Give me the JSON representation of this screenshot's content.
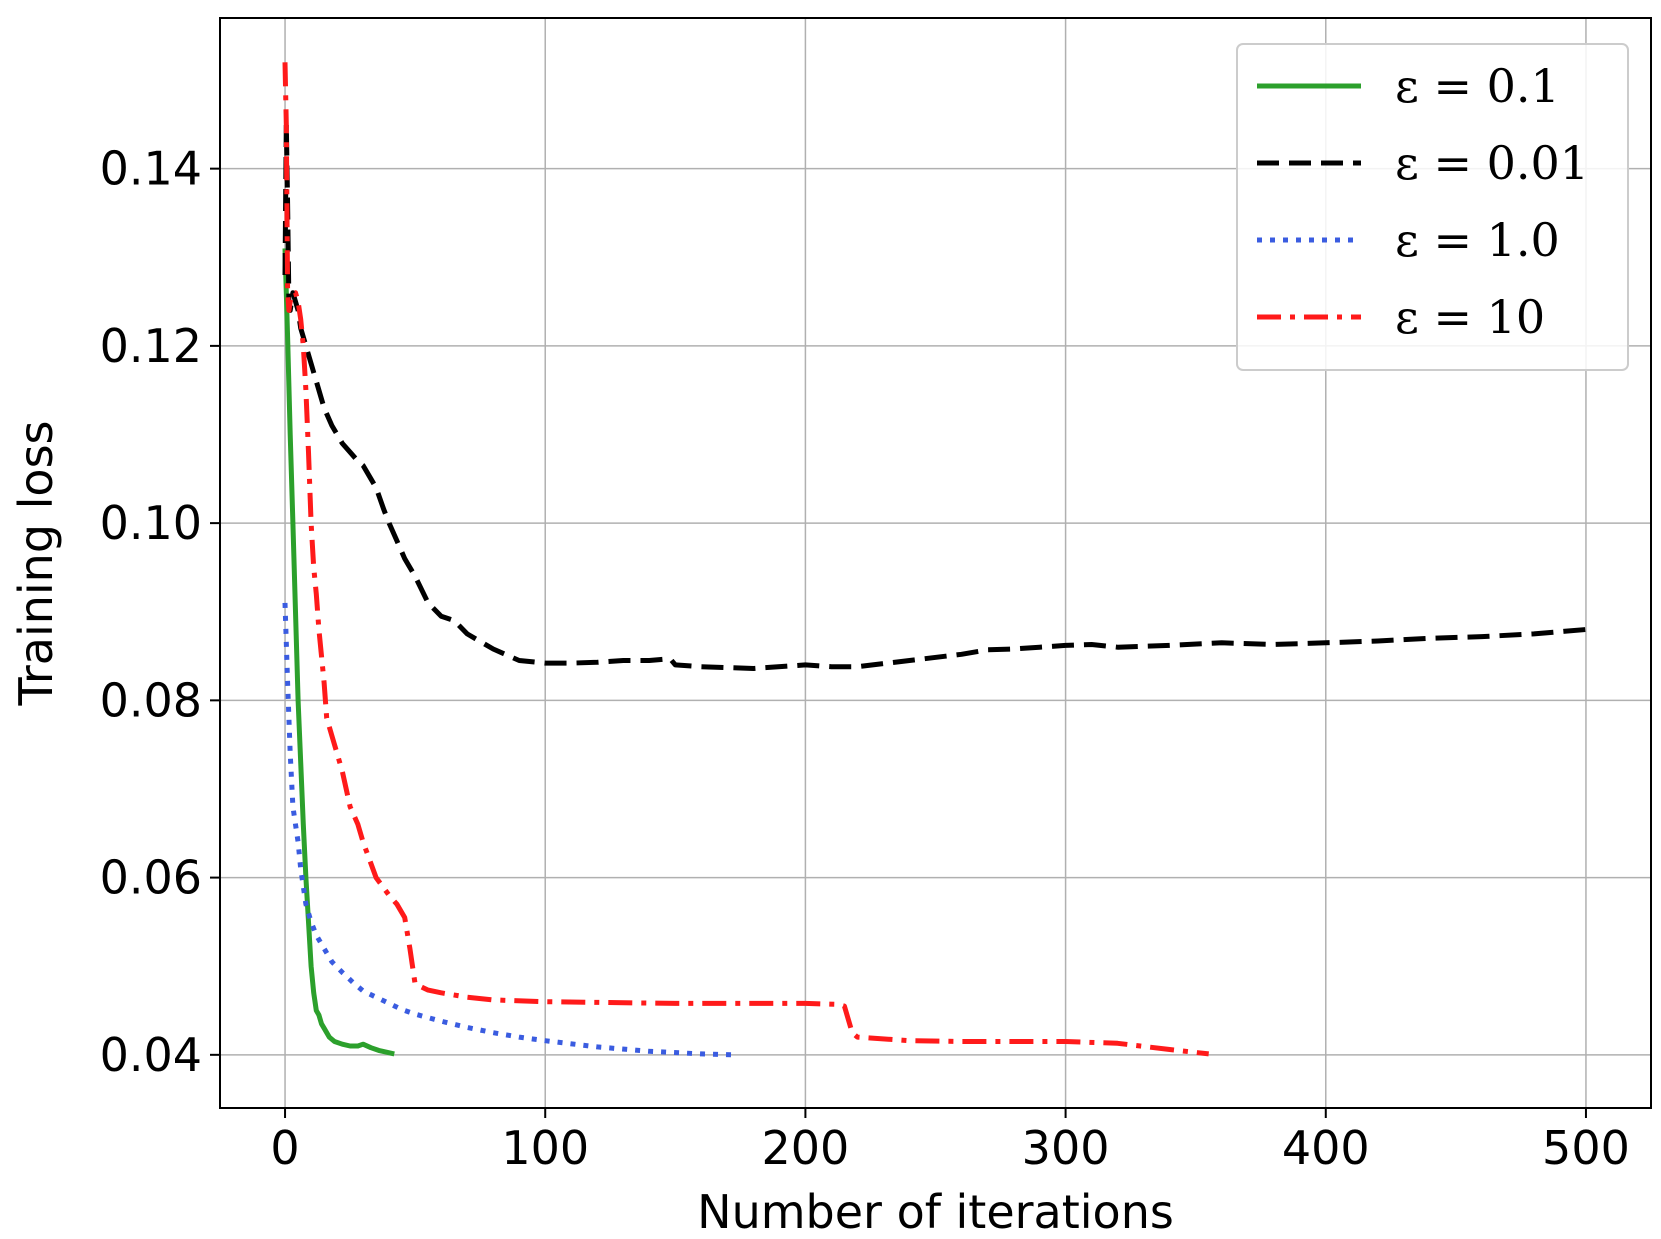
{
  "chart_data": {
    "type": "line",
    "title": "",
    "xlabel": "Number of iterations",
    "ylabel": "Training loss",
    "xlim": [
      -25,
      525
    ],
    "ylim": [
      0.034,
      0.157
    ],
    "xticks": [
      0,
      100,
      200,
      300,
      400,
      500
    ],
    "yticks": [
      0.04,
      0.06,
      0.08,
      0.1,
      0.12,
      0.14
    ],
    "xtick_labels": [
      "0",
      "100",
      "200",
      "300",
      "400",
      "500"
    ],
    "ytick_labels": [
      "0.04",
      "0.06",
      "0.08",
      "0.10",
      "0.12",
      "0.14"
    ],
    "grid": true,
    "legend_position": "top-right",
    "series": [
      {
        "name": "ε = 0.1",
        "color": "#2ca02c",
        "style": "solid",
        "x": [
          0,
          1,
          2,
          3,
          4,
          5,
          6,
          7,
          8,
          9,
          10,
          11,
          12,
          13,
          14,
          15,
          17,
          19,
          22,
          25,
          28,
          30,
          33,
          36,
          39,
          42
        ],
        "y": [
          0.131,
          0.121,
          0.11,
          0.1,
          0.09,
          0.08,
          0.073,
          0.066,
          0.06,
          0.055,
          0.05,
          0.047,
          0.045,
          0.0445,
          0.0435,
          0.043,
          0.042,
          0.0415,
          0.0412,
          0.041,
          0.041,
          0.0412,
          0.0408,
          0.0405,
          0.0403,
          0.0401
        ]
      },
      {
        "name": "ε = 0.01",
        "color": "#000000",
        "style": "dashed",
        "x": [
          0,
          0.5,
          1,
          1.5,
          2,
          3,
          4,
          5,
          6,
          8,
          10,
          12,
          15,
          18,
          20,
          22,
          25,
          28,
          30,
          33,
          35,
          38,
          40,
          43,
          46,
          50,
          55,
          60,
          65,
          70,
          80,
          90,
          100,
          110,
          120,
          130,
          140,
          148,
          150,
          160,
          180,
          200,
          210,
          220,
          240,
          260,
          270,
          280,
          290,
          300,
          310,
          320,
          340,
          360,
          380,
          400,
          420,
          440,
          460,
          480,
          500
        ],
        "y": [
          0.128,
          0.145,
          0.136,
          0.125,
          0.124,
          0.126,
          0.125,
          0.124,
          0.122,
          0.12,
          0.118,
          0.116,
          0.113,
          0.111,
          0.11,
          0.109,
          0.108,
          0.107,
          0.1065,
          0.105,
          0.104,
          0.1015,
          0.1,
          0.098,
          0.096,
          0.094,
          0.091,
          0.0895,
          0.089,
          0.0875,
          0.0858,
          0.0845,
          0.0842,
          0.0842,
          0.0843,
          0.0845,
          0.0845,
          0.0847,
          0.084,
          0.0838,
          0.0836,
          0.084,
          0.0838,
          0.0838,
          0.0845,
          0.0852,
          0.0857,
          0.0858,
          0.086,
          0.0862,
          0.0863,
          0.086,
          0.0862,
          0.0865,
          0.0863,
          0.0865,
          0.0867,
          0.087,
          0.0872,
          0.0875,
          0.088
        ]
      },
      {
        "name": "ε = 1.0",
        "color": "#3a5ce0",
        "style": "dotted",
        "x": [
          0,
          1,
          2,
          3,
          4,
          5,
          6,
          7,
          8,
          10,
          12,
          15,
          18,
          22,
          26,
          30,
          35,
          40,
          45,
          50,
          60,
          70,
          80,
          90,
          100,
          120,
          140,
          160,
          172
        ],
        "y": [
          0.091,
          0.082,
          0.074,
          0.068,
          0.066,
          0.064,
          0.061,
          0.059,
          0.057,
          0.055,
          0.0535,
          0.052,
          0.0505,
          0.0493,
          0.0482,
          0.0472,
          0.0465,
          0.0458,
          0.0451,
          0.0446,
          0.0438,
          0.0431,
          0.0425,
          0.042,
          0.0416,
          0.0409,
          0.0404,
          0.0401,
          0.04
        ]
      },
      {
        "name": "ε = 10",
        "color": "#ff1a1a",
        "style": "dashdot",
        "x": [
          0,
          0.5,
          1,
          1.5,
          2,
          3,
          4,
          5,
          6,
          7,
          8,
          9,
          10,
          11,
          12,
          13,
          14,
          15,
          16,
          18,
          20,
          22,
          25,
          28,
          30,
          35,
          40,
          43,
          46,
          48,
          50,
          55,
          60,
          70,
          80,
          100,
          150,
          200,
          212,
          215,
          218,
          220,
          240,
          260,
          300,
          320,
          340,
          355
        ],
        "y": [
          0.152,
          0.145,
          0.126,
          0.124,
          0.125,
          0.126,
          0.126,
          0.125,
          0.123,
          0.12,
          0.115,
          0.108,
          0.1,
          0.095,
          0.092,
          0.088,
          0.085,
          0.082,
          0.078,
          0.076,
          0.074,
          0.072,
          0.068,
          0.066,
          0.064,
          0.06,
          0.058,
          0.057,
          0.0555,
          0.052,
          0.048,
          0.0473,
          0.047,
          0.0465,
          0.0462,
          0.046,
          0.0458,
          0.0458,
          0.0457,
          0.0455,
          0.0425,
          0.042,
          0.0416,
          0.0415,
          0.0415,
          0.0413,
          0.0406,
          0.0401
        ]
      }
    ]
  }
}
